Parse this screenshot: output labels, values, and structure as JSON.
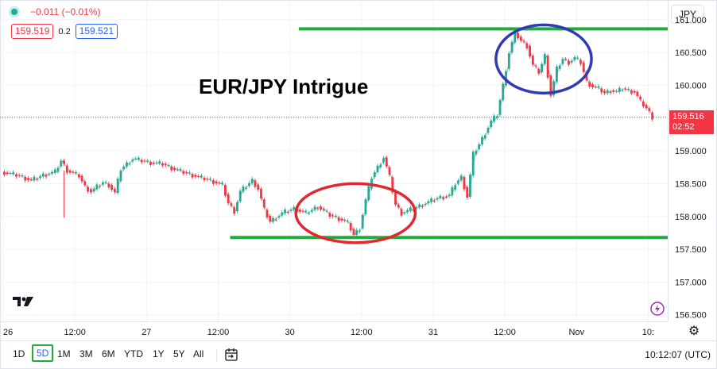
{
  "legend": {
    "change": "−0.011 (−0.01%)",
    "bid": "159.519",
    "spread": "0.2",
    "ask": "159.521"
  },
  "currency_button": "JPY",
  "current_price": {
    "value": "159.516",
    "countdown": "02:52",
    "price": 159.516
  },
  "time_display": "10:12:07 (UTC)",
  "toolbar": {
    "ranges": [
      "1D",
      "5D",
      "1M",
      "3M",
      "6M",
      "YTD",
      "1Y",
      "5Y",
      "All"
    ],
    "active": "5D"
  },
  "colors": {
    "up": "#22ab94",
    "down": "#f23645",
    "support_resistance": "#22ab3a",
    "circle_red": "#e0282e",
    "circle_blue": "#2e3bb5",
    "accent": "#2962ff"
  },
  "chart_data": {
    "type": "line",
    "title": "EUR/JPY Intrigue",
    "xlabel": "",
    "ylabel": "",
    "ylim": [
      156.4,
      161.3
    ],
    "y_ticks": [
      161.0,
      160.5,
      160.0,
      159.5,
      159.0,
      158.5,
      158.0,
      157.5,
      157.0,
      156.5
    ],
    "y_tick_labels": [
      "161.000",
      "160.500",
      "160.000",
      "",
      "159.000",
      "158.500",
      "158.000",
      "157.500",
      "157.000",
      "156.500"
    ],
    "x_tick_labels": [
      "26",
      "12:00",
      "27",
      "12:00",
      "30",
      "12:00",
      "31",
      "12:00",
      "Nov",
      "10:"
    ],
    "x_tick_index": [
      0,
      24,
      48,
      72,
      96,
      120,
      144,
      168,
      192,
      216
    ],
    "x_count": 222,
    "price_series": [
      {
        "i": 0,
        "v": 158.68
      },
      {
        "i": 6,
        "v": 158.62
      },
      {
        "i": 10,
        "v": 158.55
      },
      {
        "i": 14,
        "v": 158.63
      },
      {
        "i": 18,
        "v": 158.68
      },
      {
        "i": 20,
        "v": 158.85
      },
      {
        "i": 22,
        "v": 158.7
      },
      {
        "i": 26,
        "v": 158.62
      },
      {
        "i": 28,
        "v": 158.45
      },
      {
        "i": 30,
        "v": 158.38
      },
      {
        "i": 34,
        "v": 158.52
      },
      {
        "i": 36,
        "v": 158.48
      },
      {
        "i": 38,
        "v": 158.36
      },
      {
        "i": 40,
        "v": 158.72
      },
      {
        "i": 44,
        "v": 158.88
      },
      {
        "i": 50,
        "v": 158.82
      },
      {
        "i": 54,
        "v": 158.8
      },
      {
        "i": 58,
        "v": 158.72
      },
      {
        "i": 62,
        "v": 158.66
      },
      {
        "i": 66,
        "v": 158.6
      },
      {
        "i": 70,
        "v": 158.55
      },
      {
        "i": 74,
        "v": 158.48
      },
      {
        "i": 76,
        "v": 158.2
      },
      {
        "i": 78,
        "v": 158.08
      },
      {
        "i": 80,
        "v": 158.38
      },
      {
        "i": 84,
        "v": 158.55
      },
      {
        "i": 86,
        "v": 158.42
      },
      {
        "i": 88,
        "v": 158.1
      },
      {
        "i": 90,
        "v": 157.92
      },
      {
        "i": 94,
        "v": 158.05
      },
      {
        "i": 98,
        "v": 158.12
      },
      {
        "i": 102,
        "v": 158.05
      },
      {
        "i": 106,
        "v": 158.15
      },
      {
        "i": 110,
        "v": 158.02
      },
      {
        "i": 114,
        "v": 157.95
      },
      {
        "i": 116,
        "v": 157.9
      },
      {
        "i": 118,
        "v": 157.72
      },
      {
        "i": 120,
        "v": 157.82
      },
      {
        "i": 122,
        "v": 158.25
      },
      {
        "i": 124,
        "v": 158.6
      },
      {
        "i": 126,
        "v": 158.75
      },
      {
        "i": 128,
        "v": 158.9
      },
      {
        "i": 130,
        "v": 158.6
      },
      {
        "i": 132,
        "v": 158.18
      },
      {
        "i": 134,
        "v": 158.05
      },
      {
        "i": 138,
        "v": 158.12
      },
      {
        "i": 142,
        "v": 158.2
      },
      {
        "i": 146,
        "v": 158.28
      },
      {
        "i": 150,
        "v": 158.32
      },
      {
        "i": 152,
        "v": 158.5
      },
      {
        "i": 154,
        "v": 158.6
      },
      {
        "i": 156,
        "v": 158.3
      },
      {
        "i": 158,
        "v": 158.95
      },
      {
        "i": 160,
        "v": 159.1
      },
      {
        "i": 164,
        "v": 159.45
      },
      {
        "i": 166,
        "v": 159.55
      },
      {
        "i": 168,
        "v": 160.0
      },
      {
        "i": 170,
        "v": 160.5
      },
      {
        "i": 172,
        "v": 160.8
      },
      {
        "i": 174,
        "v": 160.68
      },
      {
        "i": 176,
        "v": 160.6
      },
      {
        "i": 178,
        "v": 160.3
      },
      {
        "i": 180,
        "v": 160.2
      },
      {
        "i": 182,
        "v": 160.45
      },
      {
        "i": 184,
        "v": 159.85
      },
      {
        "i": 186,
        "v": 160.25
      },
      {
        "i": 188,
        "v": 160.4
      },
      {
        "i": 190,
        "v": 160.35
      },
      {
        "i": 192,
        "v": 160.42
      },
      {
        "i": 194,
        "v": 160.35
      },
      {
        "i": 196,
        "v": 160.05
      },
      {
        "i": 198,
        "v": 159.98
      },
      {
        "i": 200,
        "v": 159.95
      },
      {
        "i": 202,
        "v": 159.88
      },
      {
        "i": 204,
        "v": 159.92
      },
      {
        "i": 206,
        "v": 159.9
      },
      {
        "i": 208,
        "v": 159.95
      },
      {
        "i": 210,
        "v": 159.92
      },
      {
        "i": 212,
        "v": 159.9
      },
      {
        "i": 214,
        "v": 159.75
      },
      {
        "i": 216,
        "v": 159.65
      },
      {
        "i": 218,
        "v": 159.516
      }
    ],
    "resistance_level": 160.86,
    "support_level": 157.68,
    "annotations": [
      {
        "shape": "ellipse",
        "color": "red",
        "cx_index": 118,
        "cy_value": 158.05,
        "rx_index": 20,
        "ry_value": 0.45
      },
      {
        "shape": "ellipse",
        "color": "blue",
        "cx_index": 181,
        "cy_value": 160.4,
        "rx_index": 16,
        "ry_value": 0.52
      }
    ]
  }
}
